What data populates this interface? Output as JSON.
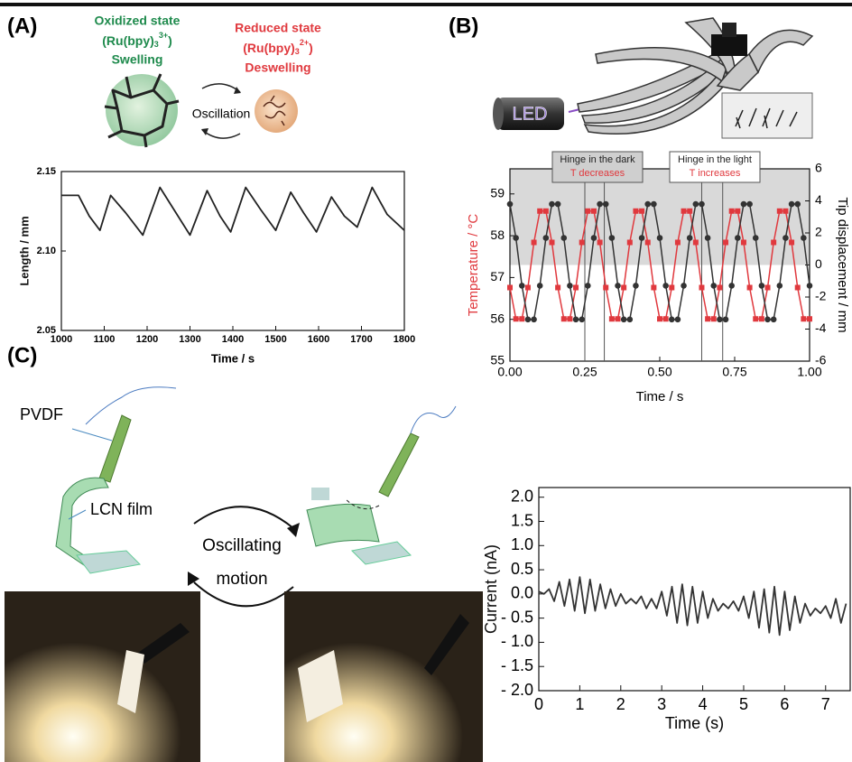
{
  "labels": {
    "panel_a": "(A)",
    "panel_b": "(B)",
    "panel_c": "(C)",
    "oxidized": {
      "title": "Oxidized state",
      "formula": [
        "(Ru(bpy)",
        "3",
        "3+",
        ")"
      ],
      "effect": "Swelling"
    },
    "reduced": {
      "title": "Reduced state",
      "formula": [
        "(Ru(bpy)",
        "3",
        "2+",
        ")"
      ],
      "effect": "Deswelling"
    },
    "oscillation": "Oscillation",
    "led": "LED",
    "pvdf": "PVDF",
    "lcn": "LCN film",
    "motion": [
      "Oscillating",
      "motion"
    ]
  },
  "chart_data": [
    {
      "type": "line",
      "xlabel": "Time / s",
      "ylabel": "Length / mm",
      "color": "#222222",
      "x": [
        1000,
        1040,
        1065,
        1090,
        1115,
        1150,
        1190,
        1230,
        1265,
        1300,
        1340,
        1370,
        1395,
        1430,
        1465,
        1500,
        1535,
        1565,
        1595,
        1630,
        1660,
        1690,
        1725,
        1760,
        1800
      ],
      "values": [
        2.135,
        2.135,
        2.122,
        2.113,
        2.135,
        2.124,
        2.11,
        2.14,
        2.125,
        2.11,
        2.138,
        2.122,
        2.112,
        2.14,
        2.126,
        2.113,
        2.137,
        2.124,
        2.112,
        2.134,
        2.122,
        2.115,
        2.14,
        2.123,
        2.113
      ],
      "xlim": [
        1000,
        1800
      ],
      "xticks": [
        1000,
        1100,
        1200,
        1300,
        1400,
        1500,
        1600,
        1700,
        1800
      ],
      "ylim": [
        2.05,
        2.15
      ],
      "yticks": [
        2.05,
        {
          "value": 2.1,
          "label": "2.10"
        },
        2.15
      ]
    },
    {
      "type": "line",
      "xlabel": "Time / s",
      "ylabel": "Temperature / °C",
      "y2label": "Tip displacement / mm",
      "ylabel_color": "#e0393e",
      "shade": "#d9d9d9",
      "annotations": [
        [
          "Hinge in the dark",
          "T decreases"
        ],
        [
          "Hinge in the light",
          "T increases"
        ]
      ],
      "vlines": [
        0.25,
        0.315,
        0.64,
        0.71
      ],
      "x": [
        0,
        0.02,
        0.04,
        0.06,
        0.08,
        0.1,
        0.12,
        0.14,
        0.16,
        0.18,
        0.2,
        0.22,
        0.24,
        0.26,
        0.28,
        0.3,
        0.32,
        0.34,
        0.36,
        0.38,
        0.4,
        0.42,
        0.44,
        0.46,
        0.48,
        0.5,
        0.52,
        0.54,
        0.56,
        0.58,
        0.6,
        0.62,
        0.64,
        0.66,
        0.68,
        0.7,
        0.72,
        0.74,
        0.76,
        0.78,
        0.8,
        0.82,
        0.84,
        0.86,
        0.88,
        0.9,
        0.92,
        0.94,
        0.96,
        0.98,
        1
      ],
      "series": [
        {
          "color": "#e0393e",
          "marker": "square",
          "values": [
            56.76,
            56.01,
            56.01,
            56.76,
            57.84,
            58.59,
            58.59,
            57.84,
            56.76,
            56.01,
            56.01,
            56.76,
            57.84,
            58.59,
            58.59,
            57.84,
            56.76,
            56.01,
            56.01,
            56.76,
            57.84,
            58.59,
            58.59,
            57.84,
            56.76,
            56.01,
            56.01,
            56.76,
            57.84,
            58.59,
            58.59,
            57.84,
            56.76,
            56.01,
            56.01,
            56.76,
            57.84,
            58.59,
            58.59,
            57.84,
            56.76,
            56.01,
            56.01,
            56.76,
            57.84,
            58.59,
            58.59,
            57.84,
            56.76,
            56.01,
            56.01
          ]
        },
        {
          "color": "#333333",
          "marker": "circle",
          "axis": "y2",
          "values": [
            3.8,
            1.69,
            -1.29,
            -3.4,
            -3.4,
            -1.29,
            1.69,
            3.8,
            3.8,
            1.69,
            -1.29,
            -3.4,
            -3.4,
            -1.29,
            1.69,
            3.8,
            3.8,
            1.69,
            -1.29,
            -3.4,
            -3.4,
            -1.29,
            1.69,
            3.8,
            3.8,
            1.69,
            -1.29,
            -3.4,
            -3.4,
            -1.29,
            1.69,
            3.8,
            3.8,
            1.69,
            -1.29,
            -3.4,
            -3.4,
            -1.29,
            1.69,
            3.8,
            3.8,
            1.69,
            -1.29,
            -3.4,
            -3.4,
            -1.29,
            1.69,
            3.8,
            3.8,
            1.69,
            -1.29
          ]
        }
      ],
      "xlim": [
        0,
        1
      ],
      "xticks": [
        {
          "value": 0,
          "label": "0.00"
        },
        0.25,
        {
          "value": 0.5,
          "label": "0.50"
        },
        0.75,
        {
          "value": 1,
          "label": "1.00"
        }
      ],
      "ylim": [
        55,
        59.6
      ],
      "yticks": [
        55,
        56,
        57,
        58,
        59
      ],
      "y2lim": [
        -6,
        6
      ],
      "y2ticks": [
        -6,
        -4,
        -2,
        0,
        2,
        4,
        6
      ]
    },
    {
      "type": "line",
      "xlabel": "Time (s)",
      "ylabel": "Current (nA)",
      "color": "#333333",
      "x": [
        0,
        0.125,
        0.25,
        0.375,
        0.5,
        0.625,
        0.75,
        0.875,
        1,
        1.125,
        1.25,
        1.375,
        1.5,
        1.625,
        1.75,
        1.875,
        2,
        2.125,
        2.25,
        2.375,
        2.5,
        2.625,
        2.75,
        2.875,
        3,
        3.125,
        3.25,
        3.375,
        3.5,
        3.625,
        3.75,
        3.875,
        4,
        4.125,
        4.25,
        4.375,
        4.5,
        4.625,
        4.75,
        4.875,
        5,
        5.125,
        5.25,
        5.375,
        5.5,
        5.625,
        5.75,
        5.875,
        6,
        6.125,
        6.25,
        6.375,
        6.5,
        6.625,
        6.75,
        6.875,
        7,
        7.125,
        7.25,
        7.375,
        7.5
      ],
      "values": [
        0.05,
        0,
        0.1,
        -0.15,
        0.25,
        -0.25,
        0.3,
        -0.35,
        0.35,
        -0.4,
        0.3,
        -0.35,
        0.2,
        -0.3,
        0.1,
        -0.25,
        0,
        -0.2,
        -0.1,
        -0.2,
        -0.05,
        -0.3,
        -0.1,
        -0.3,
        0.05,
        -0.45,
        0.15,
        -0.6,
        0.2,
        -0.65,
        0.15,
        -0.6,
        0.05,
        -0.5,
        -0.1,
        -0.35,
        -0.2,
        -0.3,
        -0.15,
        -0.35,
        -0.05,
        -0.5,
        0.05,
        -0.7,
        0.1,
        -0.8,
        0.15,
        -0.85,
        0.05,
        -0.75,
        -0.05,
        -0.6,
        -0.2,
        -0.45,
        -0.3,
        -0.4,
        -0.25,
        -0.5,
        -0.1,
        -0.6,
        -0.2
      ],
      "xlim": [
        0,
        7.6
      ],
      "xticks": [
        0,
        1,
        2,
        3,
        4,
        5,
        6,
        7
      ],
      "ylim": [
        -2,
        2.2
      ],
      "yticks": [
        {
          "value": 2,
          "label": "2.0"
        },
        1.5,
        {
          "value": 1,
          "label": "1.0"
        },
        0.5,
        {
          "value": 0,
          "label": "0.0"
        },
        {
          "value": -0.5,
          "label": "- 0.5"
        },
        {
          "value": -1,
          "label": "- 1.0"
        },
        {
          "value": -1.5,
          "label": "- 1.5"
        },
        {
          "value": -2,
          "label": "- 2.0"
        }
      ]
    }
  ]
}
